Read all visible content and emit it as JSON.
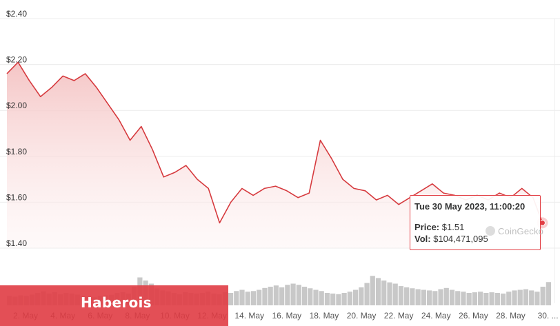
{
  "chart_data": {
    "type": "area",
    "series": [
      {
        "x": [
          0,
          0.6,
          1.2,
          1.8,
          2.4,
          3.0,
          3.6,
          4.2,
          4.8,
          5.4,
          6.0,
          6.6,
          7.2,
          7.8,
          8.4,
          9.0,
          9.6,
          10.2,
          10.8,
          11.4,
          12.0,
          12.6,
          13.2,
          13.8,
          14.4,
          15.0,
          15.6,
          16.2,
          16.8,
          17.4,
          18.0,
          18.6,
          19.2,
          19.8,
          20.4,
          21.0,
          21.6,
          22.2,
          22.8,
          23.4,
          24.0,
          24.6,
          25.2,
          25.8,
          26.4,
          27.0,
          27.6,
          28.2,
          28.7
        ],
        "values": [
          2.16,
          2.21,
          2.13,
          2.06,
          2.1,
          2.15,
          2.13,
          2.16,
          2.1,
          2.03,
          1.96,
          1.87,
          1.93,
          1.83,
          1.71,
          1.73,
          1.76,
          1.7,
          1.66,
          1.51,
          1.6,
          1.66,
          1.63,
          1.66,
          1.67,
          1.65,
          1.62,
          1.64,
          1.87,
          1.79,
          1.7,
          1.66,
          1.65,
          1.61,
          1.63,
          1.59,
          1.62,
          1.65,
          1.68,
          1.64,
          1.63,
          1.61,
          1.63,
          1.61,
          1.64,
          1.62,
          1.66,
          1.62,
          1.51
        ]
      }
    ],
    "x_labels": [
      "2. May",
      "4. May",
      "6. May",
      "8. May",
      "10. May",
      "12. May",
      "14. May",
      "16. May",
      "18. May",
      "20. May",
      "22. May",
      "24. May",
      "26. May",
      "28. May",
      "30. ..."
    ],
    "x_label_pos": [
      1,
      3,
      5,
      7,
      9,
      11,
      13,
      15,
      17,
      19,
      21,
      23,
      25,
      27,
      29
    ],
    "y_ticks": [
      1.4,
      1.6,
      1.8,
      2.0,
      2.2,
      2.4
    ],
    "y_tick_labels": [
      "$1.40",
      "$1.60",
      "$1.80",
      "$2.00",
      "$2.20",
      "$2.40"
    ],
    "ylim": [
      1.4,
      2.4
    ],
    "xlim": [
      0,
      29.2
    ],
    "grid": true,
    "volume": [
      0.3,
      0.28,
      0.32,
      0.3,
      0.35,
      0.4,
      0.45,
      0.38,
      0.42,
      0.36,
      0.4,
      0.38,
      0.35,
      0.3,
      0.28,
      0.26,
      0.3,
      0.32,
      0.34,
      0.4,
      0.42,
      0.38,
      0.6,
      0.9,
      0.8,
      0.7,
      0.55,
      0.48,
      0.45,
      0.4,
      0.36,
      0.42,
      0.4,
      0.38,
      0.4,
      0.44,
      0.38,
      0.36,
      0.42,
      0.4,
      0.46,
      0.5,
      0.44,
      0.46,
      0.5,
      0.56,
      0.6,
      0.64,
      0.58,
      0.66,
      0.7,
      0.66,
      0.6,
      0.55,
      0.5,
      0.46,
      0.4,
      0.38,
      0.36,
      0.4,
      0.44,
      0.5,
      0.58,
      0.72,
      0.95,
      0.88,
      0.8,
      0.74,
      0.7,
      0.62,
      0.58,
      0.55,
      0.52,
      0.5,
      0.48,
      0.46,
      0.52,
      0.56,
      0.5,
      0.46,
      0.44,
      0.4,
      0.42,
      0.44,
      0.4,
      0.42,
      0.4,
      0.38,
      0.44,
      0.48,
      0.5,
      0.52,
      0.48,
      0.44,
      0.6,
      0.75
    ],
    "colors": {
      "line": "#d63a3e",
      "fill_top": "#f4c2c2",
      "volume": "#c8c8c8",
      "grid": "#ececec",
      "marker": "#e23f45"
    }
  },
  "tooltip": {
    "title": "Tue 30 May 2023, 11:00:20",
    "price_label": "Price:",
    "price_value": "$1.51",
    "vol_label": "Vol:",
    "vol_value": "$104,471,095"
  },
  "watermark": "CoinGecko",
  "banner": {
    "text": "Haberois"
  }
}
